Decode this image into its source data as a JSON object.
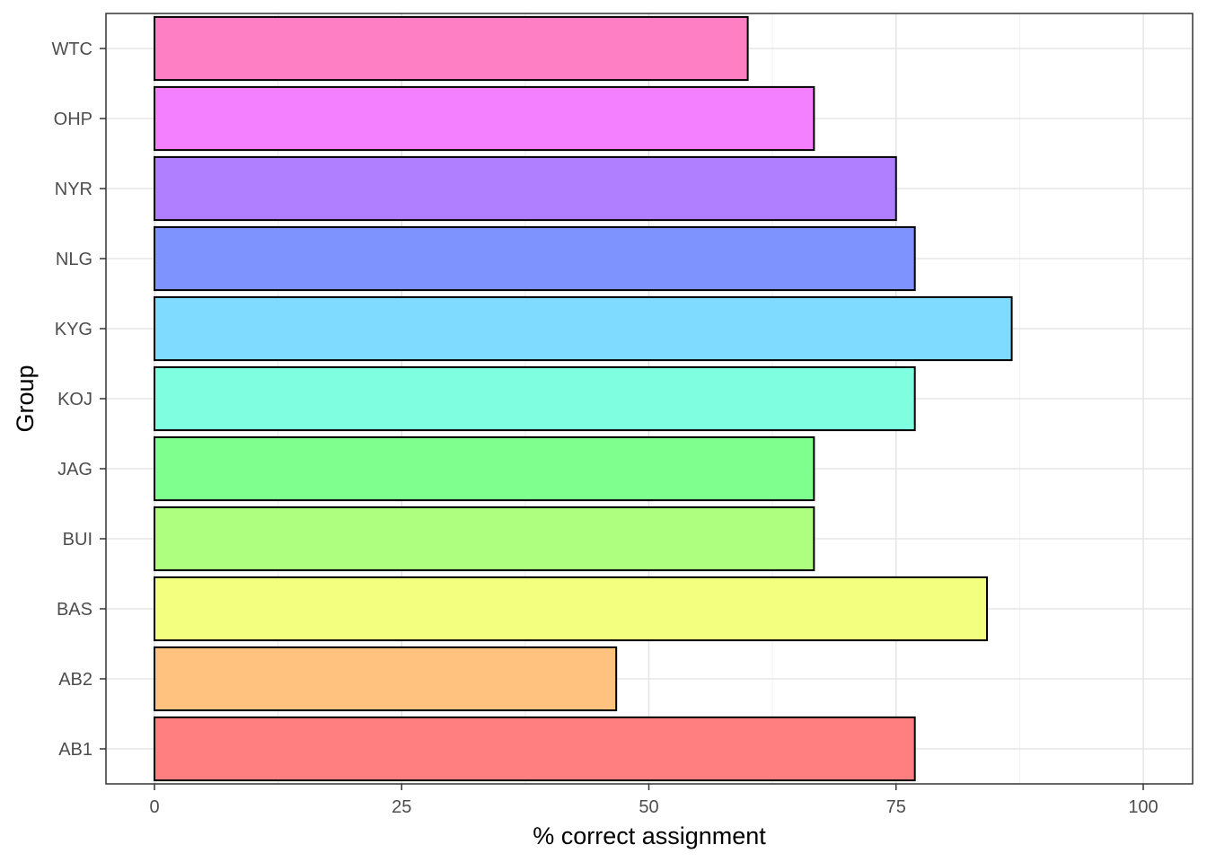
{
  "chart_data": {
    "type": "bar",
    "orientation": "horizontal",
    "title": "",
    "xlabel": "% correct assignment",
    "ylabel": "Group",
    "xlim": [
      -10,
      105
    ],
    "xticks": [
      0,
      25,
      50,
      75,
      100
    ],
    "xtick_labels": [
      "0",
      "25",
      "50",
      "75",
      "100"
    ],
    "grid": true,
    "legend": "none",
    "categories": [
      "AB1",
      "AB2",
      "BAS",
      "BUI",
      "JAG",
      "KOJ",
      "KYG",
      "NLG",
      "NYR",
      "OHP",
      "WTC"
    ],
    "values": [
      76.9,
      46.7,
      84.2,
      66.7,
      66.7,
      76.9,
      86.7,
      76.9,
      75.0,
      66.7,
      60.0
    ],
    "colors": [
      "#FF7F80",
      "#FFC27F",
      "#F2FF7F",
      "#AEFF7F",
      "#7FFF8E",
      "#7FFFDF",
      "#7FDBFF",
      "#7F93FF",
      "#B07FFF",
      "#F47FFF",
      "#FF7FC4"
    ]
  }
}
